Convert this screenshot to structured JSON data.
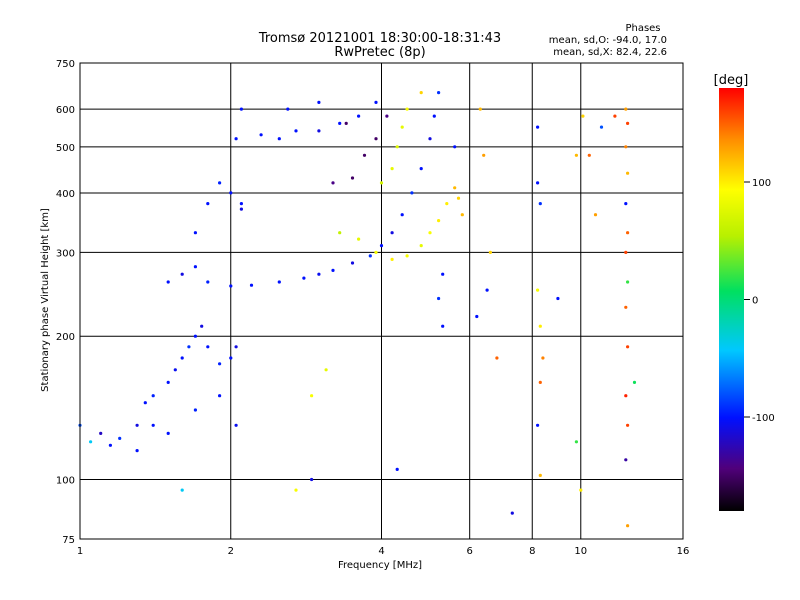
{
  "chart_data": {
    "type": "scatter",
    "title": "Tromsø 20121001 18:30:00-18:31:43",
    "subtitle": "RwPretec (8p)",
    "stats": {
      "heading": "Phases",
      "line1": "mean, sd,O: -94.0, 17.0",
      "line2": "mean, sd,X:  82.4, 22.6"
    },
    "xlabel": "Frequency [MHz]",
    "ylabel": "Stationary phase Virtual Height [km]",
    "x_scale": "log",
    "y_scale": "log",
    "xlim": [
      1,
      16
    ],
    "ylim": [
      75,
      750
    ],
    "x_ticks": [
      {
        "value": 1,
        "label": "1"
      },
      {
        "value": 2,
        "label": "2"
      },
      {
        "value": 4,
        "label": "4"
      },
      {
        "value": 6,
        "label": "6"
      },
      {
        "value": 8,
        "label": "8"
      },
      {
        "value": 10,
        "label": "10"
      },
      {
        "value": 16,
        "label": "16"
      }
    ],
    "y_ticks": [
      {
        "value": 75,
        "label": "75"
      },
      {
        "value": 100,
        "label": "100"
      },
      {
        "value": 200,
        "label": "200"
      },
      {
        "value": 300,
        "label": "300"
      },
      {
        "value": 400,
        "label": "400"
      },
      {
        "value": 500,
        "label": "500"
      },
      {
        "value": 600,
        "label": "600"
      },
      {
        "value": 750,
        "label": "750"
      }
    ],
    "grid": true,
    "colorbar": {
      "label": "[deg]",
      "range": [
        -180,
        180
      ],
      "ticks": [
        {
          "value": 100,
          "label": "100"
        },
        {
          "value": 0,
          "label": "0"
        },
        {
          "value": -100,
          "label": "-100"
        }
      ]
    },
    "series": [
      {
        "points": [
          [
            1.0,
            130,
            -80
          ],
          [
            1.05,
            120,
            -40
          ],
          [
            1.1,
            125,
            -120
          ],
          [
            1.15,
            118,
            -100
          ],
          [
            1.2,
            122,
            -90
          ],
          [
            1.3,
            130,
            -110
          ],
          [
            1.35,
            145,
            -100
          ],
          [
            1.4,
            150,
            -95
          ],
          [
            1.5,
            160,
            -100
          ],
          [
            1.55,
            170,
            -105
          ],
          [
            1.6,
            180,
            -100
          ],
          [
            1.65,
            190,
            -90
          ],
          [
            1.7,
            200,
            -100
          ],
          [
            1.75,
            210,
            -110
          ],
          [
            1.8,
            190,
            -100
          ],
          [
            1.9,
            175,
            -95
          ],
          [
            2.0,
            180,
            -100
          ],
          [
            2.05,
            190,
            -110
          ],
          [
            1.4,
            130,
            -100
          ],
          [
            1.5,
            125,
            -100
          ],
          [
            1.7,
            140,
            -95
          ],
          [
            1.9,
            150,
            -100
          ],
          [
            2.05,
            130,
            -105
          ],
          [
            1.3,
            115,
            -100
          ],
          [
            1.5,
            260,
            -100
          ],
          [
            1.6,
            270,
            -110
          ],
          [
            1.7,
            280,
            -100
          ],
          [
            1.8,
            260,
            -95
          ],
          [
            2.0,
            255,
            -100
          ],
          [
            2.2,
            256,
            -100
          ],
          [
            2.5,
            260,
            -100
          ],
          [
            2.8,
            265,
            -100
          ],
          [
            3.0,
            270,
            -105
          ],
          [
            3.2,
            275,
            -100
          ],
          [
            3.5,
            285,
            -110
          ],
          [
            3.8,
            295,
            -90
          ],
          [
            4.0,
            310,
            -100
          ],
          [
            4.2,
            330,
            -110
          ],
          [
            4.4,
            360,
            -100
          ],
          [
            4.6,
            400,
            -90
          ],
          [
            4.8,
            450,
            -100
          ],
          [
            5.0,
            520,
            -110
          ],
          [
            5.1,
            580,
            -100
          ],
          [
            5.2,
            650,
            -90
          ],
          [
            1.7,
            330,
            -100
          ],
          [
            1.8,
            380,
            -100
          ],
          [
            1.9,
            420,
            -95
          ],
          [
            2.0,
            400,
            -100
          ],
          [
            2.1,
            370,
            -110
          ],
          [
            2.05,
            520,
            -100
          ],
          [
            2.1,
            600,
            -100
          ],
          [
            2.3,
            530,
            -100
          ],
          [
            2.5,
            520,
            -100
          ],
          [
            2.7,
            540,
            -100
          ],
          [
            3.0,
            540,
            -110
          ],
          [
            3.3,
            560,
            -100
          ],
          [
            3.6,
            580,
            -100
          ],
          [
            3.9,
            620,
            -100
          ],
          [
            2.6,
            600,
            -100
          ],
          [
            3.0,
            620,
            -100
          ],
          [
            3.2,
            420,
            -140
          ],
          [
            3.5,
            430,
            -150
          ],
          [
            3.7,
            480,
            -150
          ],
          [
            3.9,
            520,
            -150
          ],
          [
            4.1,
            580,
            -140
          ],
          [
            3.4,
            560,
            -150
          ],
          [
            2.1,
            380,
            -100
          ],
          [
            3.3,
            330,
            60
          ],
          [
            3.6,
            320,
            80
          ],
          [
            3.9,
            300,
            90
          ],
          [
            4.2,
            290,
            100
          ],
          [
            4.5,
            295,
            90
          ],
          [
            4.8,
            310,
            80
          ],
          [
            5.0,
            330,
            90
          ],
          [
            5.2,
            350,
            100
          ],
          [
            5.4,
            380,
            100
          ],
          [
            5.6,
            410,
            120
          ],
          [
            4.0,
            420,
            70
          ],
          [
            4.2,
            450,
            80
          ],
          [
            4.3,
            500,
            75
          ],
          [
            4.4,
            550,
            80
          ],
          [
            4.5,
            600,
            90
          ],
          [
            4.8,
            650,
            110
          ],
          [
            3.1,
            170,
            80
          ],
          [
            2.9,
            150,
            90
          ],
          [
            1.6,
            95,
            -40
          ],
          [
            2.7,
            95,
            90
          ],
          [
            2.9,
            100,
            -110
          ],
          [
            4.3,
            105,
            -100
          ],
          [
            6.3,
            600,
            120
          ],
          [
            6.4,
            480,
            130
          ],
          [
            6.6,
            300,
            110
          ],
          [
            6.5,
            250,
            -100
          ],
          [
            6.2,
            220,
            -100
          ],
          [
            6.8,
            180,
            150
          ],
          [
            5.3,
            210,
            -100
          ],
          [
            5.2,
            240,
            -90
          ],
          [
            5.3,
            270,
            -100
          ],
          [
            7.3,
            85,
            -110
          ],
          [
            8.2,
            550,
            -100
          ],
          [
            8.2,
            420,
            -100
          ],
          [
            8.3,
            380,
            -90
          ],
          [
            8.2,
            250,
            90
          ],
          [
            8.3,
            210,
            100
          ],
          [
            8.4,
            180,
            140
          ],
          [
            8.3,
            160,
            150
          ],
          [
            8.2,
            130,
            -100
          ],
          [
            8.3,
            102,
            120
          ],
          [
            9.0,
            240,
            -100
          ],
          [
            9.8,
            480,
            120
          ],
          [
            10.1,
            580,
            110
          ],
          [
            10.4,
            480,
            150
          ],
          [
            10.7,
            360,
            130
          ],
          [
            10.0,
            95,
            100
          ],
          [
            9.8,
            120,
            20
          ],
          [
            11.0,
            550,
            -80
          ],
          [
            11.7,
            580,
            160
          ],
          [
            12.3,
            600,
            130
          ],
          [
            12.4,
            560,
            160
          ],
          [
            12.3,
            500,
            140
          ],
          [
            12.4,
            440,
            120
          ],
          [
            12.3,
            380,
            -100
          ],
          [
            12.4,
            330,
            150
          ],
          [
            12.3,
            300,
            160
          ],
          [
            12.4,
            260,
            20
          ],
          [
            12.3,
            230,
            150
          ],
          [
            12.4,
            190,
            160
          ],
          [
            12.3,
            150,
            170
          ],
          [
            12.4,
            130,
            160
          ],
          [
            12.3,
            110,
            -130
          ],
          [
            12.4,
            80,
            130
          ],
          [
            12.8,
            160,
            10
          ],
          [
            5.7,
            390,
            110
          ],
          [
            5.6,
            500,
            -100
          ],
          [
            5.8,
            360,
            120
          ]
        ]
      }
    ]
  }
}
